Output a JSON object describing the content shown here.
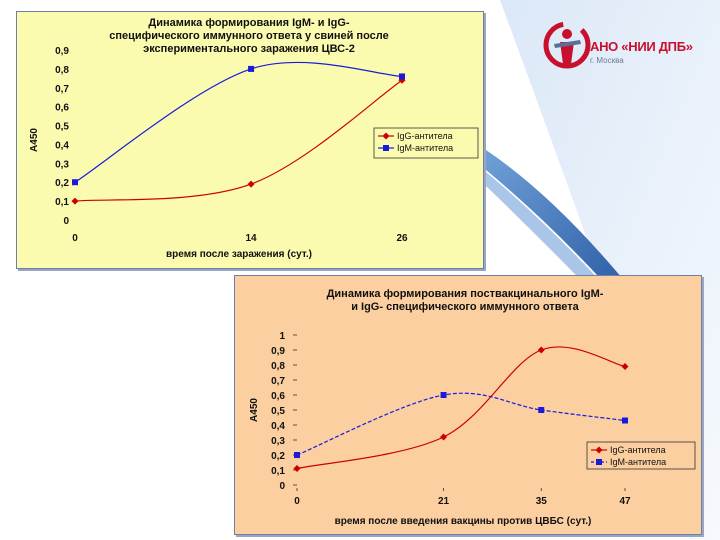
{
  "colors": {
    "ig_g": "#cc0000",
    "ig_m": "#1a1adc",
    "chart1_bg": "#fbfbb0",
    "chart2_bg": "#fccfa0",
    "slide_accent": "#2f6db3"
  },
  "logo": {
    "name": "АНО «НИИ ДПБ»",
    "city": "г. Москва"
  },
  "chart_data": [
    {
      "type": "line",
      "title_lines": [
        "Динамика формирования IgM- и IgG-",
        "специфического иммунного ответа у свиней после",
        "экспериментального заражения ЦВС-2"
      ],
      "xlabel": "время после заражения (сут.)",
      "ylabel": "A450",
      "x": [
        0,
        14,
        26
      ],
      "x_tick_labels": [
        "0",
        "14",
        "26"
      ],
      "ylim": [
        0,
        0.9
      ],
      "y_ticks": [
        0,
        0.1,
        0.2,
        0.3,
        0.4,
        0.5,
        0.6,
        0.7,
        0.8,
        0.9
      ],
      "y_tick_labels": [
        "0",
        "0,1",
        "0,2",
        "0,3",
        "0,4",
        "0,5",
        "0,6",
        "0,7",
        "0,8",
        "0,9"
      ],
      "legend_position": "right",
      "series": [
        {
          "name": "IgG-антитела",
          "values": [
            0.1,
            0.19,
            0.74
          ],
          "marker": "diamond",
          "dash": "solid"
        },
        {
          "name": "IgM-антитела",
          "values": [
            0.2,
            0.8,
            0.76
          ],
          "marker": "square",
          "dash": "solid"
        }
      ]
    },
    {
      "type": "line",
      "title_lines": [
        "Динамика формирования поствакцинального IgM-",
        "и IgG- специфического иммунного ответа"
      ],
      "xlabel": "время после введения вакцины против ЦВБС (сут.)",
      "ylabel": "A450",
      "x": [
        0,
        21,
        35,
        47
      ],
      "x_tick_labels": [
        "0",
        "21",
        "35",
        "47"
      ],
      "ylim": [
        0,
        1
      ],
      "y_ticks": [
        0,
        0.1,
        0.2,
        0.3,
        0.4,
        0.5,
        0.6,
        0.7,
        0.8,
        0.9,
        1
      ],
      "y_tick_labels": [
        "0",
        "0,1",
        "0,2",
        "0,3",
        "0,4",
        "0,5",
        "0,6",
        "0,7",
        "0,8",
        "0,9",
        "1"
      ],
      "legend_position": "bottom-right",
      "series": [
        {
          "name": "IgG-антитела",
          "values": [
            0.11,
            0.32,
            0.9,
            0.79
          ],
          "marker": "diamond",
          "dash": "solid"
        },
        {
          "name": "IgM-антитела",
          "values": [
            0.2,
            0.6,
            0.5,
            0.43
          ],
          "marker": "square",
          "dash": "dashed"
        }
      ]
    }
  ]
}
